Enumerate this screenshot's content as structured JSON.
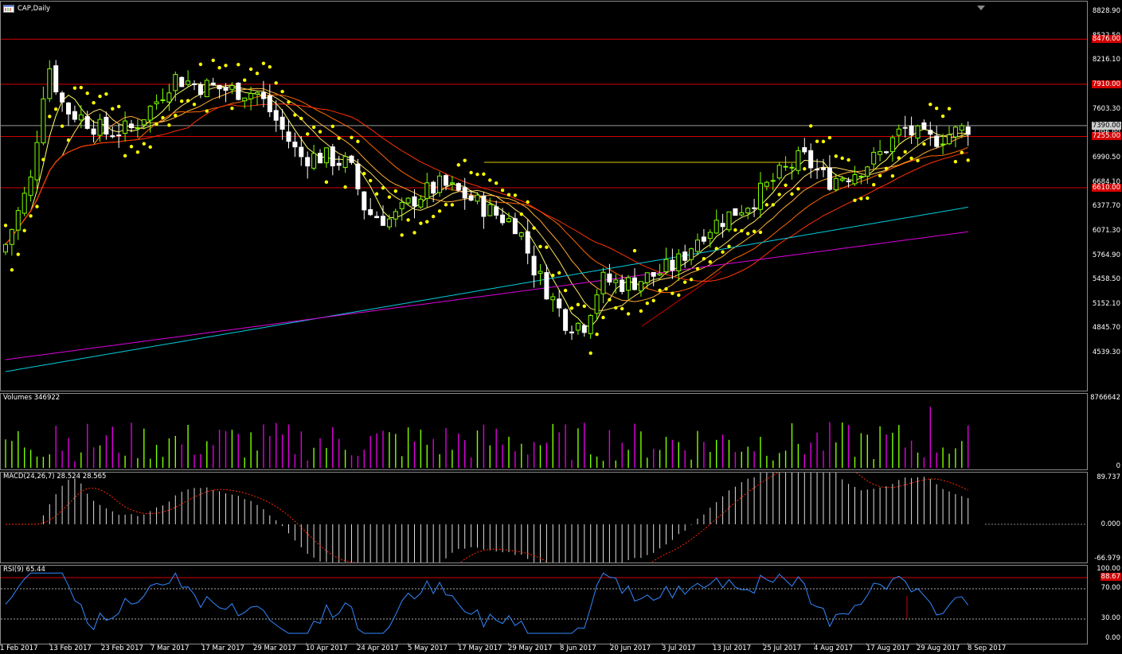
{
  "window": {
    "title": "CAP,Daily",
    "icon": "chart-window-icon"
  },
  "main_axis": {
    "labels": [
      "8828.90",
      "8522.50",
      "8216.10",
      "7909.70",
      "7603.30",
      "7296.90",
      "6990.50",
      "6684.10",
      "6377.70",
      "6071.30",
      "5764.90",
      "5458.50",
      "5152.10",
      "4845.70",
      "4539.30"
    ]
  },
  "price_tags": [
    {
      "text": "8476.00",
      "style": "red"
    },
    {
      "text": "7910.00",
      "style": "red"
    },
    {
      "text": "7390.00",
      "style": "gray"
    },
    {
      "text": "7255.00",
      "style": "red"
    },
    {
      "text": "6610.00",
      "style": "red"
    }
  ],
  "volume": {
    "label": "Volumes 346922",
    "axis_top": "8766642",
    "axis_bottom": "0"
  },
  "macd": {
    "label": "MACD(24,26,7) 28.524 28.565",
    "axis": [
      "89.737",
      "0.000",
      "-66.979"
    ]
  },
  "rsi": {
    "label": "RSI(9) 65.44",
    "axis": [
      "100.00",
      "70.00",
      "30.00",
      "0.00"
    ],
    "tag": "88.67"
  },
  "dates": [
    "1 Feb 2017",
    "13 Feb 2017",
    "23 Feb 2017",
    "7 Mar 2017",
    "17 Mar 2017",
    "29 Mar 2017",
    "10 Apr 2017",
    "24 Apr 2017",
    "5 May 2017",
    "17 May 2017",
    "29 May 2017",
    "8 Jun 2017",
    "20 Jun 2017",
    "3 Jul 2017",
    "13 Jul 2017",
    "25 Jul 2017",
    "4 Aug 2017",
    "17 Aug 2017",
    "29 Aug 2017",
    "8 Sep 2017"
  ],
  "colors": {
    "bull": "#7fff00",
    "bear": "#ffffff",
    "sar": "#ffff00",
    "ma_fast": "#ffff66",
    "ma_mid": "#ffaa33",
    "ma_slow": "#ff3300",
    "ma_cyan": "#00ccdd",
    "ma_magenta": "#dd00dd",
    "volume_up": "#7fff00",
    "volume_down": "#dd00dd",
    "rsi_line": "#3388ff",
    "hline": "#d40000"
  }
}
